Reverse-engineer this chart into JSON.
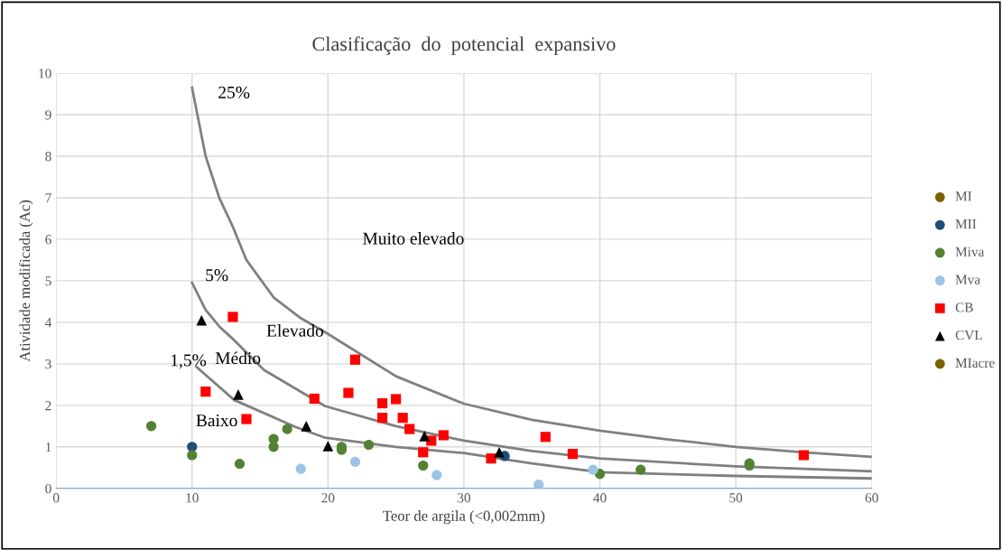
{
  "chart_data": {
    "type": "scatter",
    "title": "Clasificação  do  potencial  expansivo",
    "xlabel": "Teor de argila (<0,002mm)",
    "ylabel": "Atividade modificada (Ac)",
    "xlim": [
      0,
      60
    ],
    "xticks": [
      0,
      10,
      20,
      30,
      40,
      50,
      60
    ],
    "ylim": [
      0,
      10
    ],
    "yticks": [
      0,
      1,
      2,
      3,
      4,
      5,
      6,
      7,
      8,
      9,
      10
    ],
    "grid": true,
    "legend": "right",
    "series": [
      {
        "name": "MI",
        "color": "#7f6000",
        "marker": "circle"
      },
      {
        "name": "MII",
        "color": "#1f4e79",
        "marker": "circle",
        "x": [
          10,
          33
        ],
        "values": [
          1.0,
          0.78
        ]
      },
      {
        "name": "Miva",
        "color": "#548235",
        "marker": "circle",
        "x": [
          7,
          10,
          13.5,
          16,
          16,
          17,
          21,
          21,
          23,
          27,
          40,
          43,
          51,
          51
        ],
        "values": [
          1.5,
          0.8,
          0.59,
          1.19,
          1.0,
          1.43,
          1.0,
          0.93,
          1.05,
          0.55,
          0.35,
          0.45,
          0.6,
          0.55
        ]
      },
      {
        "name": "Mva",
        "color": "#9dc3e6",
        "marker": "circle",
        "x": [
          18,
          22,
          28,
          35.5,
          39.5
        ],
        "values": [
          0.47,
          0.64,
          0.32,
          0.09,
          0.45
        ]
      },
      {
        "name": "CB",
        "color": "#ff0000",
        "marker": "square",
        "x": [
          13,
          11,
          14,
          19,
          21.5,
          22,
          24,
          24,
          25,
          25.5,
          26,
          27.6,
          28.5,
          27,
          32,
          36,
          38,
          55
        ],
        "values": [
          4.13,
          2.33,
          1.67,
          2.16,
          2.3,
          3.1,
          2.05,
          1.7,
          2.15,
          1.7,
          1.43,
          1.15,
          1.28,
          0.87,
          0.72,
          1.24,
          0.83,
          0.8
        ]
      },
      {
        "name": "CVL",
        "color": "#000000",
        "marker": "triangle",
        "x": [
          10.7,
          13.4,
          18.4,
          20,
          27.1,
          32.6
        ],
        "values": [
          4.05,
          2.26,
          1.5,
          1.02,
          1.26,
          0.87
        ]
      },
      {
        "name": "MIacre",
        "color": "#7f6000",
        "marker": "circle"
      },
      {
        "type": "line",
        "color": "#808080",
        "marker": "none",
        "x": [
          10,
          11,
          12,
          13,
          14,
          16,
          18,
          20,
          25,
          30,
          35,
          40,
          45,
          50,
          55,
          60
        ],
        "values": [
          9.65,
          8.0,
          7.0,
          6.3,
          5.5,
          4.6,
          4.1,
          3.72,
          2.7,
          2.04,
          1.65,
          1.39,
          1.18,
          1.0,
          0.87,
          0.76
        ]
      },
      {
        "type": "line",
        "color": "#808080",
        "marker": "none",
        "x": [
          10,
          11,
          12,
          13.1,
          15.3,
          19.8,
          25,
          30,
          35,
          40,
          50,
          60
        ],
        "values": [
          4.95,
          4.3,
          3.9,
          3.57,
          2.85,
          1.98,
          1.5,
          1.15,
          0.9,
          0.72,
          0.53,
          0.41
        ]
      },
      {
        "type": "line",
        "color": "#808080",
        "marker": "none",
        "x": [
          10.35,
          13.1,
          17.6,
          19.8,
          25,
          30,
          35,
          40,
          50,
          60
        ],
        "values": [
          2.92,
          2.13,
          1.48,
          1.22,
          1.0,
          0.85,
          0.6,
          0.39,
          0.3,
          0.24
        ]
      }
    ],
    "annotations": [
      "25%",
      "5%",
      "1,5%",
      "Muito elevado",
      "Elevado",
      "Médio",
      "Baixo"
    ]
  }
}
